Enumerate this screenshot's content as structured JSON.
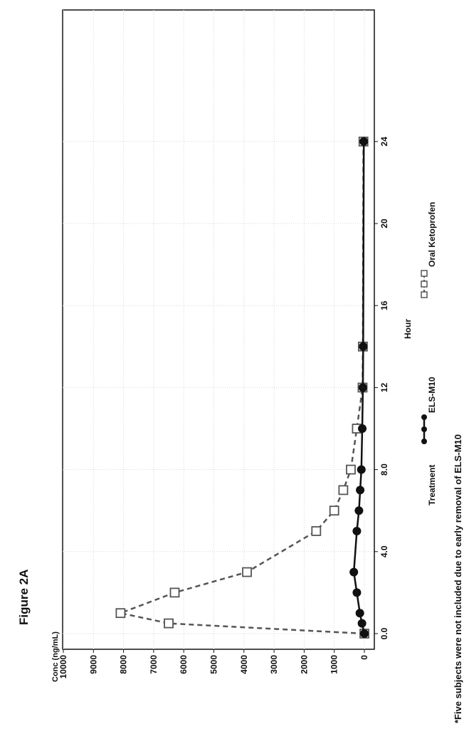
{
  "figure_label": "Figure 2A",
  "footnote": "*Five subjects were not included due to early removal of ELS-M10",
  "legend": {
    "title": "Treatment",
    "items": [
      "ELS-M10",
      "Oral Ketoprofen"
    ]
  },
  "colors": {
    "els": "#111111",
    "oral": "#555555",
    "grid": "#d6d6d6"
  },
  "chart_data": {
    "type": "line",
    "orientation": "rotated 90° counter-clockwise",
    "title": "",
    "xlabel": "Hour",
    "ylabel": "Conc (ng/mL)",
    "xlim": [
      0,
      24
    ],
    "ylim": [
      0,
      10000
    ],
    "x_ticks": [
      "0.0",
      "4.0",
      "8.0",
      "12",
      "16",
      "20",
      "24"
    ],
    "y_ticks": [
      "0",
      "1000",
      "2000",
      "3000",
      "4000",
      "5000",
      "6000",
      "7000",
      "8000",
      "9000",
      "10000"
    ],
    "grid": true,
    "legend_position": "bottom",
    "series": [
      {
        "name": "ELS-M10",
        "marker": "filled-circle",
        "line": "solid",
        "x": [
          0,
          0.5,
          1,
          2,
          3,
          5,
          6,
          7,
          8,
          10,
          12,
          14,
          24
        ],
        "y": [
          0,
          80,
          150,
          250,
          350,
          250,
          180,
          140,
          100,
          70,
          50,
          40,
          20
        ]
      },
      {
        "name": "Oral Ketoprofen",
        "marker": "open-square",
        "line": "dashed",
        "x": [
          0,
          0.5,
          1,
          2,
          3,
          5,
          6,
          7,
          8,
          10,
          12,
          14,
          24
        ],
        "y": [
          0,
          6500,
          8100,
          6300,
          3900,
          1600,
          1000,
          700,
          450,
          250,
          60,
          50,
          30
        ]
      }
    ]
  }
}
